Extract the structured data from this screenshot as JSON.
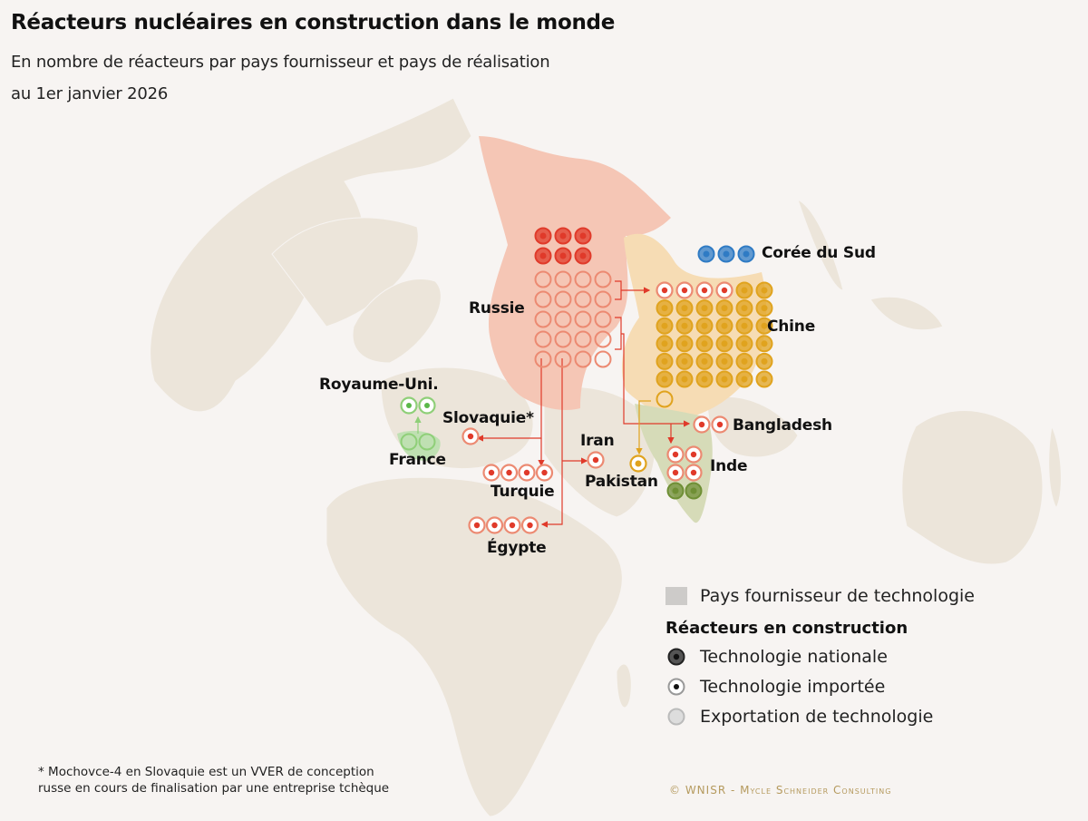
{
  "header": {
    "title": "Réacteurs nucléaires en construction dans le monde",
    "subtitle_line1": "En nombre de réacteurs par pays fournisseur et pays de réalisation",
    "subtitle_line2": "au 1er janvier 2026"
  },
  "colors": {
    "background": "#f7f4f2",
    "land": "#ece5da",
    "russia_fill": "#f5c6b5",
    "china_fill": "#f6dcb4",
    "india_fill": "#d6dbb8",
    "france_fill": "#bfe0b2",
    "russia": "#e03a2a",
    "russia_export": "#ec8a72",
    "china": "#e0a31e",
    "korea": "#2f7bc4",
    "france": "#8fcf78",
    "india": "#6f8f35",
    "credit": "#b59a5e"
  },
  "labels": {
    "russia": "Russie",
    "china": "Chine",
    "korea": "Corée du Sud",
    "uk": "Royaume-Uni.",
    "france": "France",
    "slovakia": "Slovaquie*",
    "turkey": "Turquie",
    "egypt": "Égypte",
    "iran": "Iran",
    "pakistan": "Pakistan",
    "bangladesh": "Bangladesh",
    "india": "Inde"
  },
  "legend": {
    "supplier": "Pays fournisseur de technologie",
    "title": "Réacteurs en construction",
    "national": "Technologie nationale",
    "imported": "Technologie importée",
    "export": "Exportation de technologie"
  },
  "footnote_line1": "* Mochovce-4 en Slovaquie est un VVER de conception",
  "footnote_line2": "russe en cours de finalisation par une entreprise tchèque",
  "credit": "© WNISR - Mycle Schneider Consulting",
  "chart_data": {
    "type": "map",
    "title": "Réacteurs nucléaires en construction dans le monde",
    "subtitle": "En nombre de réacteurs par pays fournisseur et pays de réalisation au 1er janvier 2026",
    "suppliers": [
      {
        "country": "Russie",
        "national": 6,
        "export": 20,
        "exports_to": [
          {
            "country": "Chine",
            "count": 4
          },
          {
            "country": "Turquie",
            "count": 4
          },
          {
            "country": "Égypte",
            "count": 4
          },
          {
            "country": "Inde",
            "count": 4
          },
          {
            "country": "Bangladesh",
            "count": 2
          },
          {
            "country": "Iran",
            "count": 1
          },
          {
            "country": "Slovaquie*",
            "count": 1
          }
        ]
      },
      {
        "country": "Chine",
        "national": 32,
        "export": 1,
        "exports_to": [
          {
            "country": "Pakistan",
            "count": 1
          }
        ]
      },
      {
        "country": "France",
        "national": 0,
        "export": 2,
        "exports_to": [
          {
            "country": "Royaume-Uni.",
            "count": 2
          }
        ]
      },
      {
        "country": "Corée du Sud",
        "national": 3,
        "export": 0,
        "exports_to": []
      },
      {
        "country": "Inde",
        "national": 2,
        "export": 0,
        "exports_to": []
      }
    ],
    "recipients": [
      {
        "country": "Chine",
        "imported": 4,
        "national": 32
      },
      {
        "country": "Turquie",
        "imported": 4
      },
      {
        "country": "Égypte",
        "imported": 4
      },
      {
        "country": "Inde",
        "imported": 4,
        "national": 2
      },
      {
        "country": "Bangladesh",
        "imported": 2
      },
      {
        "country": "Iran",
        "imported": 1
      },
      {
        "country": "Slovaquie*",
        "imported": 1
      },
      {
        "country": "Pakistan",
        "imported": 1
      },
      {
        "country": "Royaume-Uni.",
        "imported": 2
      }
    ],
    "legend": [
      "Pays fournisseur de technologie",
      "Technologie nationale",
      "Technologie importée",
      "Exportation de technologie"
    ]
  }
}
